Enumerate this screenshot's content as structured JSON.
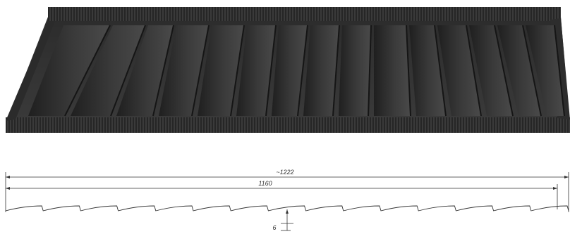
{
  "drawing": {
    "overall_width_label": "~1222",
    "working_width_label": "1160",
    "step_height_label": "6"
  },
  "colors": {
    "sheet_dark": "#2a2a2a",
    "sheet_mid": "#3c3c3c",
    "sheet_light": "#555555",
    "line": "#333333"
  }
}
